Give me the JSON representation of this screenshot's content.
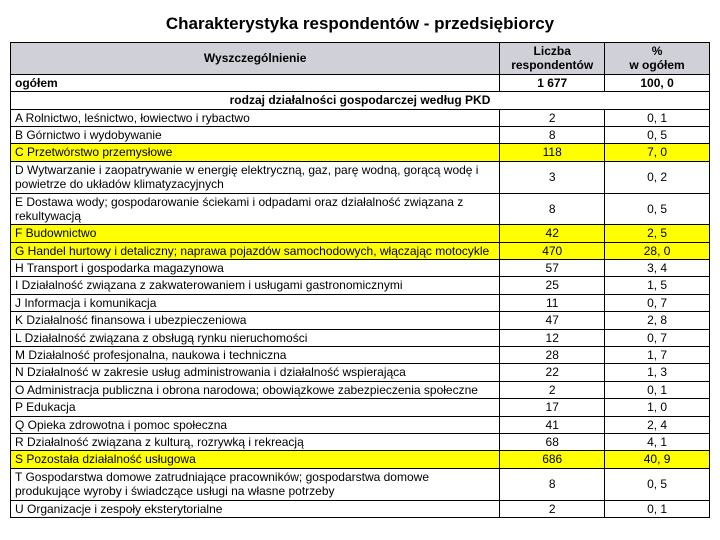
{
  "title": "Charakterystyka respondentów - przedsiębiorcy",
  "header": {
    "col1": "Wyszczególnienie",
    "col2_line1": "Liczba",
    "col2_line2": "respondentów",
    "col3_line1": "%",
    "col3_line2": "w ogółem"
  },
  "ogolem": {
    "label": "ogółem",
    "n": "1 677",
    "p": "100, 0"
  },
  "section": "rodzaj działalności gospodarczej według PKD",
  "rows": [
    {
      "lbl": "A    Rolnictwo, leśnictwo, łowiectwo i rybactwo",
      "n": "2",
      "p": "0, 1",
      "hl": false
    },
    {
      "lbl": "B    Górnictwo i wydobywanie",
      "n": "8",
      "p": "0, 5",
      "hl": false
    },
    {
      "lbl": "C    Przetwórstwo przemysłowe",
      "n": "118",
      "p": "7, 0",
      "hl": true
    },
    {
      "lbl": "D    Wytwarzanie i zaopatrywanie w energię elektryczną, gaz, parę wodną, gorącą wodę i powietrze do układów klimatyzacyjnych",
      "n": "3",
      "p": "0, 2",
      "hl": false
    },
    {
      "lbl": "E    Dostawa wody; gospodarowanie ściekami i odpadami oraz działalność związana z rekultywacją",
      "n": "8",
      "p": "0, 5",
      "hl": false
    },
    {
      "lbl": "F    Budownictwo",
      "n": "42",
      "p": "2, 5",
      "hl": true
    },
    {
      "lbl": "G    Handel hurtowy i detaliczny; naprawa pojazdów samochodowych, włączając motocykle",
      "n": "470",
      "p": "28, 0",
      "hl": true
    },
    {
      "lbl": "H    Transport i gospodarka magazynowa",
      "n": "57",
      "p": "3, 4",
      "hl": false
    },
    {
      "lbl": "I    Działalność związana z zakwaterowaniem i usługami gastronomicznymi",
      "n": "25",
      "p": "1, 5",
      "hl": false
    },
    {
      "lbl": "J    Informacja i komunikacja",
      "n": "11",
      "p": "0, 7",
      "hl": false
    },
    {
      "lbl": "K    Działalność finansowa i ubezpieczeniowa",
      "n": "47",
      "p": "2, 8",
      "hl": false
    },
    {
      "lbl": "L    Działalność związana z obsługą rynku nieruchomości",
      "n": "12",
      "p": "0, 7",
      "hl": false
    },
    {
      "lbl": "M    Działalność profesjonalna, naukowa i techniczna",
      "n": "28",
      "p": "1, 7",
      "hl": false
    },
    {
      "lbl": "N    Działalność w zakresie usług administrowania i działalność wspierająca",
      "n": "22",
      "p": "1, 3",
      "hl": false
    },
    {
      "lbl": "O    Administracja publiczna i obrona narodowa; obowiązkowe zabezpieczenia społeczne",
      "n": "2",
      "p": "0, 1",
      "hl": false
    },
    {
      "lbl": "P    Edukacja",
      "n": "17",
      "p": "1, 0",
      "hl": false
    },
    {
      "lbl": "Q    Opieka zdrowotna i pomoc społeczna",
      "n": "41",
      "p": "2, 4",
      "hl": false
    },
    {
      "lbl": "R    Działalność związana z kulturą, rozrywką i rekreacją",
      "n": "68",
      "p": "4, 1",
      "hl": false
    },
    {
      "lbl": "S    Pozostała działalność usługowa",
      "n": "686",
      "p": "40, 9",
      "hl": true
    },
    {
      "lbl": "T    Gospodarstwa domowe zatrudniające pracowników; gospodarstwa domowe produkujące wyroby i świadczące usługi na własne potrzeby",
      "n": "8",
      "p": "0, 5",
      "hl": false
    },
    {
      "lbl": "U    Organizacje i zespoły eksterytorialne",
      "n": "2",
      "p": "0, 1",
      "hl": false
    }
  ],
  "styling": {
    "highlight_color": "#ffff00",
    "header_bg": "#d0d0d8",
    "border_color": "#000000",
    "font_family": "Arial",
    "title_fontsize": 17,
    "body_fontsize": 12
  }
}
